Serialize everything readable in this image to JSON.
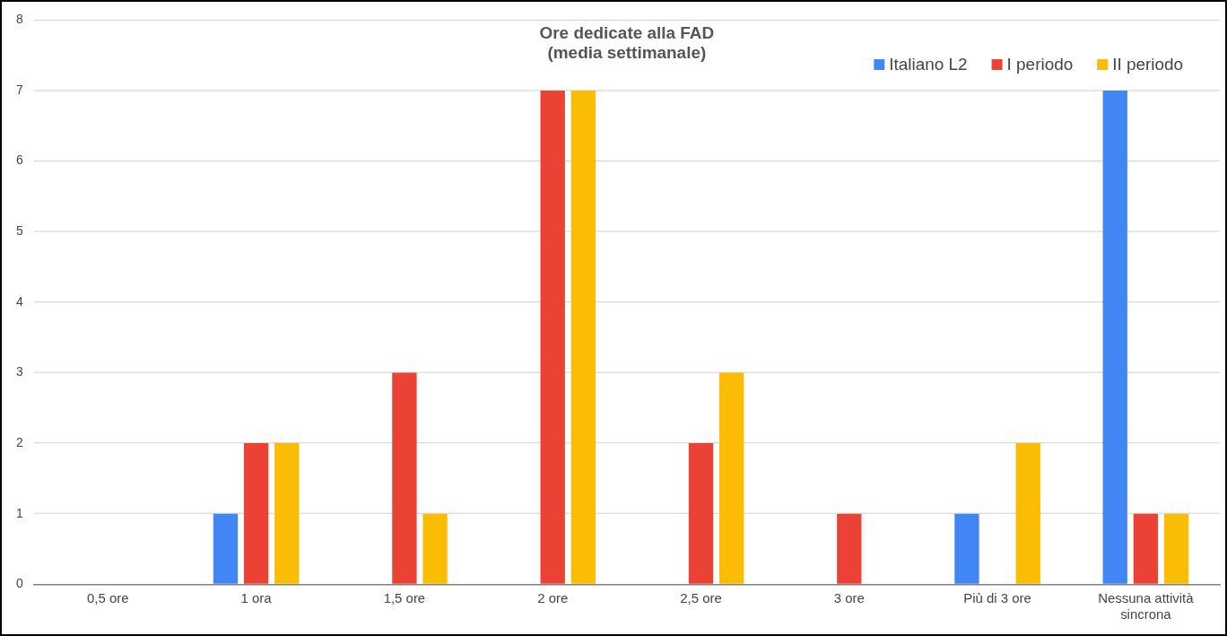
{
  "chart_data": {
    "type": "bar",
    "title": "Ore dedicate alla FAD\n(media settimanale)",
    "categories": [
      "0,5 ore",
      "1 ora",
      "1,5 ore",
      "2 ore",
      "2,5 ore",
      "3 ore",
      "Più di 3 ore",
      "Nessuna attività sincrona"
    ],
    "series": [
      {
        "name": "Italiano L2",
        "color": "#4285f4",
        "values": [
          0,
          1,
          0,
          0,
          0,
          0,
          1,
          7
        ]
      },
      {
        "name": "I periodo",
        "color": "#ea4335",
        "values": [
          0,
          2,
          3,
          7,
          2,
          1,
          0,
          1
        ]
      },
      {
        "name": "II periodo",
        "color": "#fbbc04",
        "values": [
          0,
          2,
          1,
          7,
          3,
          0,
          2,
          1
        ]
      }
    ],
    "ylim": [
      0,
      8
    ],
    "yticks": [
      0,
      1,
      2,
      3,
      4,
      5,
      6,
      7,
      8
    ],
    "grid": "y",
    "legend": "top right"
  }
}
